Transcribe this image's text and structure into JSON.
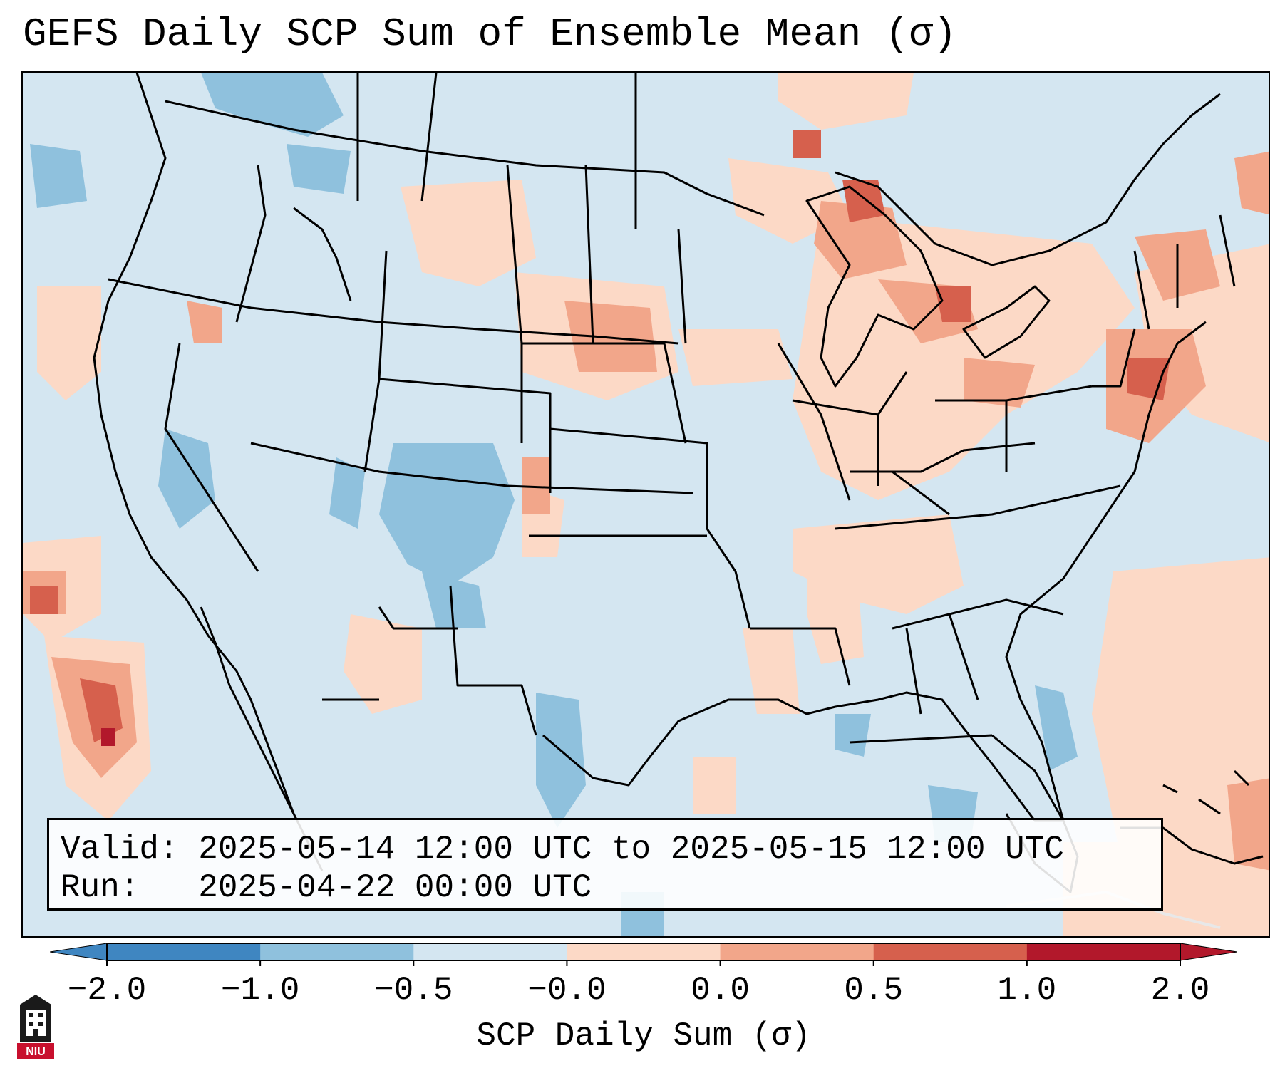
{
  "title": "GEFS Daily SCP Sum of Ensemble Mean (σ)",
  "info": {
    "valid_label": "Valid:",
    "valid_value": "2025-05-14 12:00 UTC to 2025-05-15 12:00 UTC",
    "run_label": "Run:",
    "run_value": "2025-04-22 00:00 UTC"
  },
  "colorbar": {
    "label": "SCP Daily Sum (σ)",
    "ticks": [
      "−2.0",
      "−1.0",
      "−0.5",
      "−0.0",
      "0.0",
      "0.5",
      "1.0",
      "2.0"
    ],
    "colors": [
      "#3f86c1",
      "#8fc1dd",
      "#d4e6f1",
      "#fcd9c6",
      "#f2a68a",
      "#d6604d",
      "#b2182b"
    ],
    "extend": "both"
  },
  "palette": {
    "background": "#d4e6f1",
    "neg_mod": "#8fc1dd",
    "pos_weak": "#fcd9c6",
    "pos_mod": "#f2a68a",
    "pos_strong": "#d6604d",
    "pos_max": "#b2182b"
  },
  "logo": {
    "text": "NIU",
    "icon": "niu-logo-icon"
  }
}
